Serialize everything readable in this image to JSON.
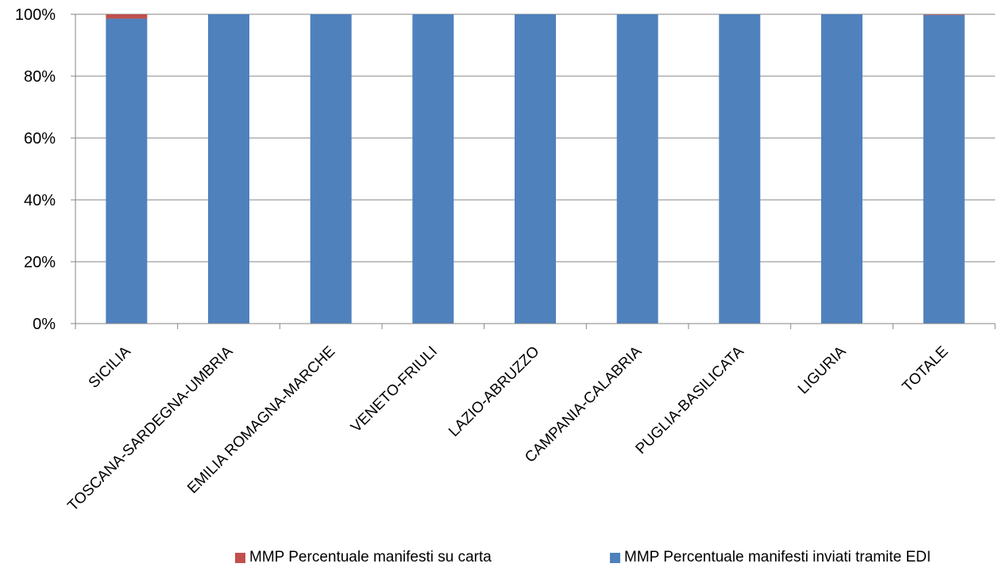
{
  "chart_data": {
    "type": "bar",
    "stacked": true,
    "percent": true,
    "categories": [
      "SICILIA",
      "TOSCANA-SARDEGNA-UMBRIA",
      "EMILIA ROMAGNA-MARCHE",
      "VENETO-FRIULI",
      "LAZIO-ABRUZZO",
      "CAMPANIA-CALABRIA",
      "PUGLIA-BASILICATA",
      "LIGURIA",
      "TOTALE"
    ],
    "series": [
      {
        "name": "MMP Percentuale  manifesti inviati tramite EDI",
        "color": "#4F81BD",
        "values": [
          98.6,
          100,
          100,
          100,
          100,
          100,
          100,
          100,
          99.8
        ]
      },
      {
        "name": "MMP Percentuale  manifesti su carta",
        "color": "#C0504D",
        "values": [
          1.4,
          0,
          0,
          0,
          0,
          0,
          0,
          0,
          0.2
        ]
      }
    ],
    "ylim": [
      0,
      100
    ],
    "yticks": [
      "0%",
      "20%",
      "40%",
      "60%",
      "80%",
      "100%"
    ],
    "grid": true,
    "legend_position": "bottom-right"
  },
  "legend": {
    "carta_label": "MMP Percentuale  manifesti su carta",
    "edi_label": "MMP Percentuale  manifesti inviati tramite EDI",
    "carta_color": "#C0504D",
    "edi_color": "#4F81BD"
  }
}
